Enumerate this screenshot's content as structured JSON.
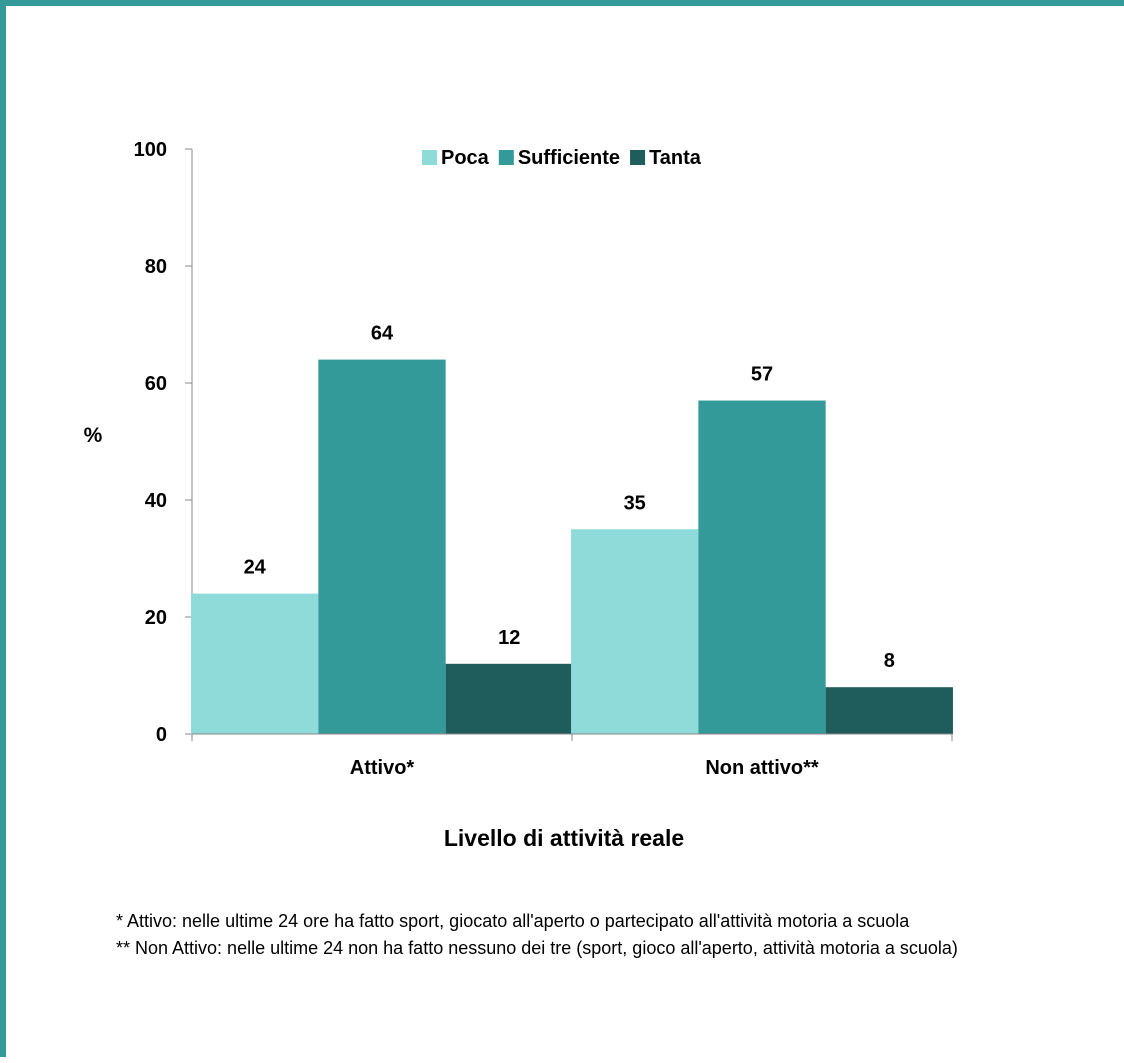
{
  "chart_data": {
    "type": "bar",
    "categories": [
      "Attivo*",
      "Non attivo**"
    ],
    "series": [
      {
        "name": "Poca",
        "values": [
          24,
          35
        ],
        "color": "#8fdbd9"
      },
      {
        "name": "Sufficiente",
        "values": [
          64,
          57
        ],
        "color": "#339a99"
      },
      {
        "name": "Tanta",
        "values": [
          12,
          8
        ],
        "color": "#1f5c5c"
      }
    ],
    "ylabel": "%",
    "xlabel": "Livello di attività reale",
    "ylim": [
      0,
      100
    ],
    "yticks": [
      0,
      20,
      40,
      60,
      80,
      100
    ],
    "grid": false,
    "legend": "top-center",
    "data_labels": true
  },
  "notes": [
    "* Attivo: nelle ultime 24 ore ha fatto sport, giocato all'aperto o partecipato all'attività motoria a scuola",
    "** Non Attivo: nelle ultime 24 non ha fatto nessuno dei tre (sport, gioco all'aperto, attività motoria a scuola)"
  ],
  "colors": {
    "frame": "#339a99"
  }
}
